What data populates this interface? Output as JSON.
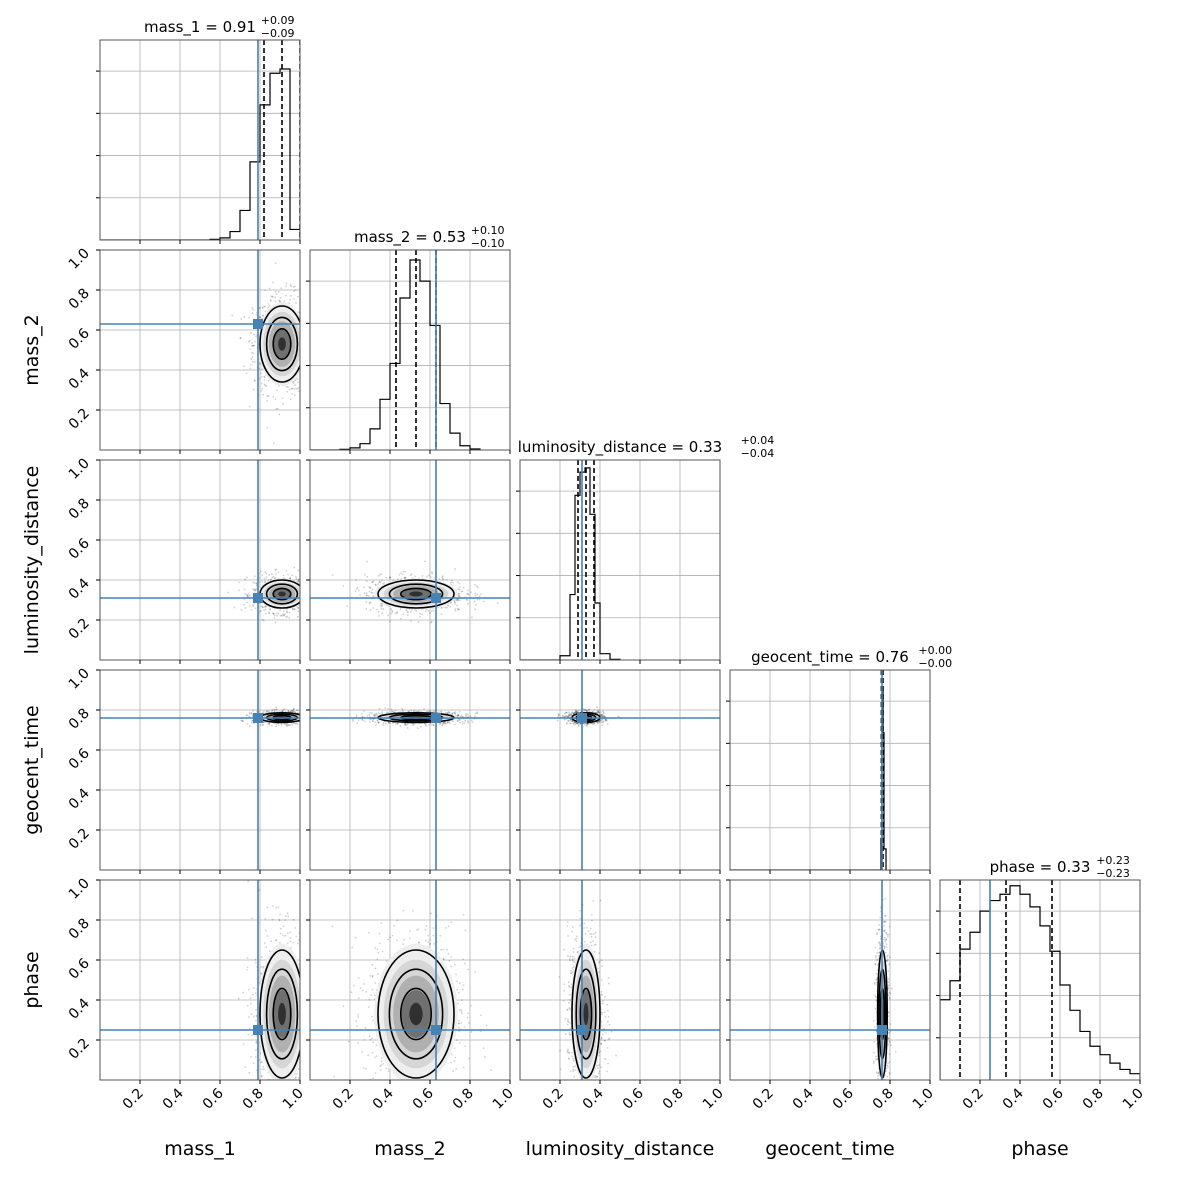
{
  "chart_data": {
    "type": "corner",
    "parameters": [
      "mass_1",
      "mass_2",
      "luminosity_distance",
      "geocent_time",
      "phase"
    ],
    "axis_range": [
      0,
      1
    ],
    "tick_labels": [
      "0.2",
      "0.4",
      "0.6",
      "0.8",
      "1.0"
    ],
    "grid": true,
    "truth_color": "#4682b4",
    "truths": [
      0.79,
      0.63,
      0.31,
      0.76,
      0.25
    ],
    "titles": [
      {
        "name": "mass_1",
        "median": "0.91",
        "plus": "+0.09",
        "minus": "−0.09"
      },
      {
        "name": "mass_2",
        "median": "0.53",
        "plus": "+0.10",
        "minus": "−0.10"
      },
      {
        "name": "luminosity_distance",
        "median": "0.33",
        "plus": "+0.04",
        "minus": "−0.04"
      },
      {
        "name": "geocent_time",
        "median": "0.76",
        "plus": "+0.00",
        "minus": "−0.00"
      },
      {
        "name": "phase",
        "median": "0.33",
        "plus": "+0.23",
        "minus": "−0.23"
      }
    ],
    "quantiles": [
      [
        0.82,
        0.91,
        1.0
      ],
      [
        0.43,
        0.53,
        0.63
      ],
      [
        0.29,
        0.33,
        0.37
      ],
      [
        0.757,
        0.762,
        0.765
      ],
      [
        0.1,
        0.33,
        0.56
      ]
    ],
    "histograms": [
      {
        "bins": [
          0.55,
          0.6,
          0.65,
          0.7,
          0.75,
          0.8,
          0.85,
          0.9,
          0.95,
          1.0
        ],
        "heights": [
          0.003,
          0.01,
          0.04,
          0.14,
          0.37,
          0.64,
          0.79,
          0.81,
          0.05
        ]
      },
      {
        "bins": [
          0.15,
          0.2,
          0.25,
          0.3,
          0.35,
          0.4,
          0.45,
          0.5,
          0.55,
          0.6,
          0.65,
          0.7,
          0.75,
          0.8,
          0.85
        ],
        "heights": [
          0.003,
          0.01,
          0.03,
          0.1,
          0.24,
          0.41,
          0.72,
          0.9,
          0.8,
          0.59,
          0.22,
          0.08,
          0.02,
          0.005
        ]
      },
      {
        "bins": [
          0.2,
          0.25,
          0.275,
          0.3,
          0.325,
          0.35,
          0.375,
          0.4,
          0.45,
          0.5
        ],
        "heights": [
          0.02,
          0.31,
          0.78,
          0.89,
          0.91,
          0.69,
          0.27,
          0.03,
          0.003
        ]
      },
      {
        "bins": [
          0.755,
          0.76,
          0.765,
          0.77,
          0.78
        ],
        "heights": [
          0.15,
          0.85,
          0.65,
          0.1
        ]
      },
      {
        "bins": [
          0.0,
          0.05,
          0.1,
          0.15,
          0.2,
          0.25,
          0.3,
          0.35,
          0.4,
          0.45,
          0.5,
          0.55,
          0.6,
          0.65,
          0.7,
          0.75,
          0.8,
          0.85,
          0.9,
          0.95,
          1.0
        ],
        "heights": [
          0.38,
          0.47,
          0.62,
          0.7,
          0.8,
          0.85,
          0.88,
          0.92,
          0.88,
          0.82,
          0.73,
          0.61,
          0.45,
          0.33,
          0.23,
          0.16,
          0.12,
          0.08,
          0.05,
          0.03
        ]
      }
    ],
    "posterior": {
      "means": [
        0.91,
        0.53,
        0.33,
        0.762,
        0.33
      ],
      "sds": [
        0.055,
        0.095,
        0.035,
        0.012,
        0.16
      ]
    }
  }
}
